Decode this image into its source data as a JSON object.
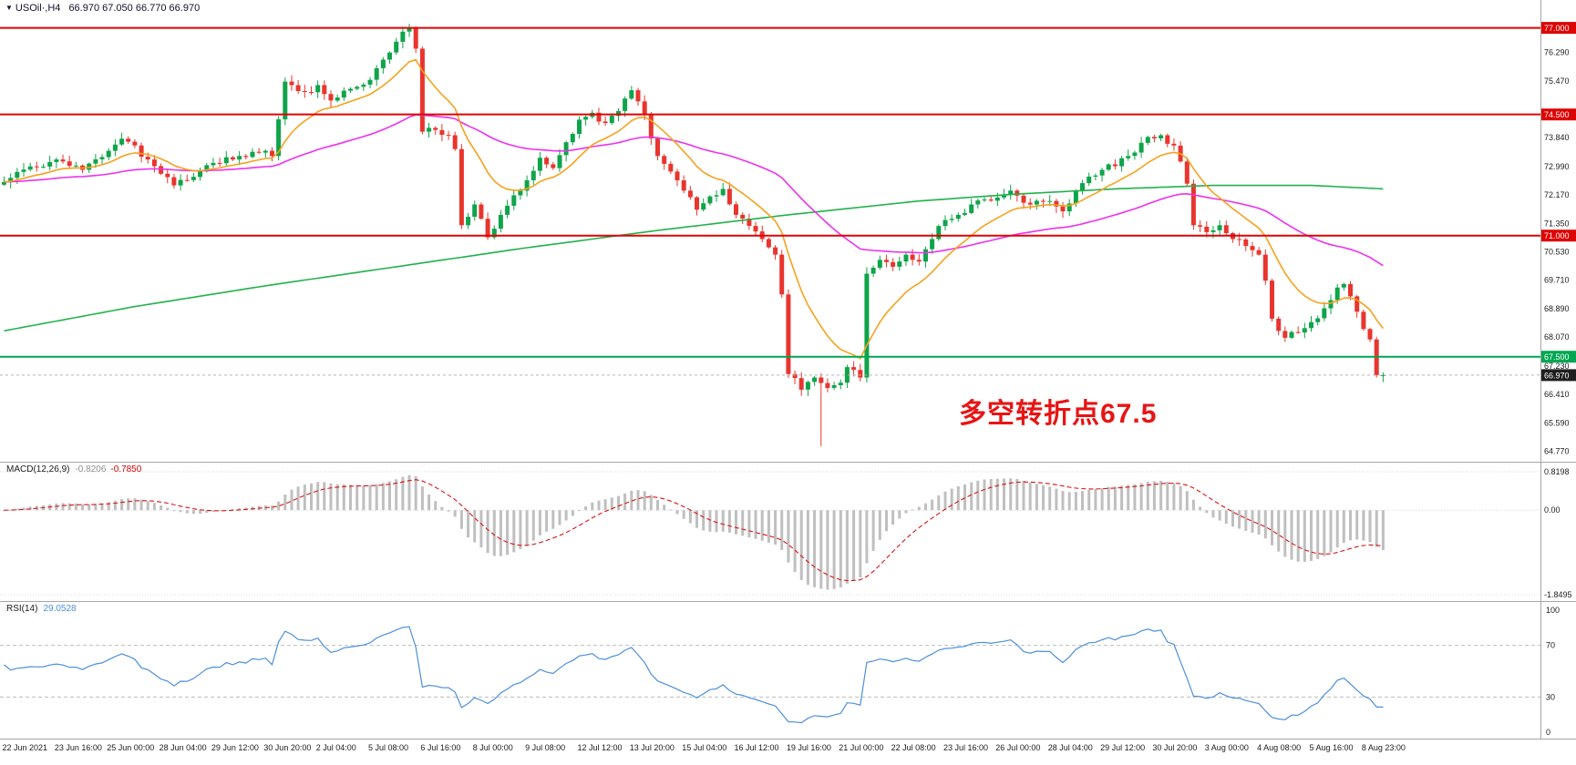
{
  "window": {
    "dropdown_icon": "▼",
    "symbol": "USOil·,H4",
    "ohlc_line": "66.970 67.050 66.770 66.970"
  },
  "colors": {
    "bull": "#0fa44a",
    "bear": "#e8352e",
    "macd_hist": "#bfbfbf",
    "macd_signal": "#dc1414",
    "rsi": "#4c8fdc",
    "badge_current_bg": "#1f1f1f",
    "separator": "#a6a6a6",
    "annotation": "#e81414"
  },
  "chart_data": {
    "type": "candlestick",
    "symbol": "USOil",
    "timeframe": "H4",
    "title": "USOil·,H4",
    "current_bar": {
      "open": 66.97,
      "high": 67.05,
      "low": 66.77,
      "close": 66.97
    },
    "current_price": {
      "label": "66.970",
      "value": 66.97
    },
    "candles": {
      "count": 212,
      "close_waypoints": [
        [
          0,
          72.55
        ],
        [
          4,
          73.0
        ],
        [
          8,
          73.2
        ],
        [
          12,
          72.9
        ],
        [
          16,
          73.45
        ],
        [
          18,
          73.8
        ],
        [
          22,
          73.2
        ],
        [
          26,
          72.45
        ],
        [
          28,
          72.6
        ],
        [
          32,
          73.1
        ],
        [
          36,
          73.3
        ],
        [
          40,
          73.45
        ],
        [
          41,
          73.3
        ],
        [
          43,
          75.45
        ],
        [
          46,
          75.15
        ],
        [
          48,
          75.35
        ],
        [
          50,
          74.9
        ],
        [
          54,
          75.3
        ],
        [
          56,
          75.5
        ],
        [
          60,
          76.6
        ],
        [
          62,
          77.0
        ],
        [
          63,
          76.4
        ],
        [
          64,
          74.0
        ],
        [
          66,
          74.05
        ],
        [
          68,
          73.9
        ],
        [
          69,
          73.5
        ],
        [
          70,
          71.3
        ],
        [
          72,
          71.9
        ],
        [
          74,
          70.95
        ],
        [
          76,
          71.6
        ],
        [
          80,
          72.6
        ],
        [
          82,
          73.25
        ],
        [
          84,
          72.95
        ],
        [
          88,
          74.35
        ],
        [
          90,
          74.55
        ],
        [
          92,
          74.25
        ],
        [
          94,
          74.6
        ],
        [
          96,
          75.2
        ],
        [
          98,
          74.5
        ],
        [
          100,
          73.3
        ],
        [
          102,
          72.85
        ],
        [
          104,
          72.3
        ],
        [
          106,
          71.75
        ],
        [
          110,
          72.35
        ],
        [
          112,
          71.6
        ],
        [
          116,
          70.9
        ],
        [
          118,
          70.45
        ],
        [
          119,
          69.3
        ],
        [
          120,
          67.0
        ],
        [
          122,
          66.55
        ],
        [
          124,
          66.9
        ],
        [
          126,
          66.6
        ],
        [
          128,
          66.75
        ],
        [
          129,
          67.2
        ],
        [
          131,
          66.9
        ],
        [
          132,
          69.9
        ],
        [
          134,
          70.3
        ],
        [
          136,
          70.1
        ],
        [
          138,
          70.45
        ],
        [
          140,
          70.25
        ],
        [
          142,
          70.9
        ],
        [
          144,
          71.45
        ],
        [
          146,
          71.6
        ],
        [
          148,
          71.9
        ],
        [
          152,
          72.1
        ],
        [
          154,
          72.3
        ],
        [
          156,
          71.95
        ],
        [
          160,
          72.0
        ],
        [
          162,
          71.7
        ],
        [
          164,
          72.3
        ],
        [
          168,
          72.9
        ],
        [
          172,
          73.3
        ],
        [
          175,
          73.85
        ],
        [
          177,
          73.9
        ],
        [
          179,
          73.6
        ],
        [
          181,
          72.5
        ],
        [
          182,
          71.3
        ],
        [
          184,
          71.1
        ],
        [
          186,
          71.3
        ],
        [
          188,
          70.9
        ],
        [
          190,
          70.7
        ],
        [
          192,
          70.45
        ],
        [
          193,
          69.7
        ],
        [
          194,
          68.6
        ],
        [
          196,
          68.05
        ],
        [
          198,
          68.2
        ],
        [
          200,
          68.5
        ],
        [
          202,
          68.9
        ],
        [
          204,
          69.5
        ],
        [
          205,
          69.6
        ],
        [
          207,
          68.8
        ],
        [
          208,
          68.3
        ],
        [
          209,
          68.0
        ],
        [
          210,
          66.97
        ],
        [
          211,
          66.97
        ]
      ],
      "peak": [
        62,
        77.12
      ],
      "long_wick": [
        125,
        64.92
      ]
    },
    "moving_averages": [
      {
        "name": "fast-ma",
        "type": "ema",
        "period": 12,
        "color": "#f6a21d"
      },
      {
        "name": "mid-ma",
        "type": "ema",
        "period": 55,
        "color": "#ee30ee"
      },
      {
        "name": "slow-ma",
        "type": "waypoints",
        "color": "#22b14c",
        "waypoints": [
          [
            0,
            68.25
          ],
          [
            20,
            68.95
          ],
          [
            40,
            69.55
          ],
          [
            60,
            70.1
          ],
          [
            80,
            70.65
          ],
          [
            100,
            71.15
          ],
          [
            120,
            71.6
          ],
          [
            140,
            72.0
          ],
          [
            155,
            72.2
          ],
          [
            170,
            72.35
          ],
          [
            185,
            72.45
          ],
          [
            200,
            72.45
          ],
          [
            211,
            72.35
          ]
        ]
      }
    ],
    "horizontal_lines": [
      {
        "label": "77.000",
        "value": 77.0,
        "color": "#dd0404"
      },
      {
        "label": "74.500",
        "value": 74.5,
        "color": "#dd0404"
      },
      {
        "label": "71.000",
        "value": 71.0,
        "color": "#dd0404"
      },
      {
        "label": "67.500",
        "value": 67.5,
        "color": "#00a651"
      }
    ],
    "price_axis_ticks": [
      {
        "label": "76.290",
        "value": 76.29
      },
      {
        "label": "75.470",
        "value": 75.47
      },
      {
        "label": "73.840",
        "value": 73.84
      },
      {
        "label": "72.990",
        "value": 72.99
      },
      {
        "label": "72.170",
        "value": 72.17
      },
      {
        "label": "71.350",
        "value": 71.35
      },
      {
        "label": "70.530",
        "value": 70.53
      },
      {
        "label": "69.710",
        "value": 69.71
      },
      {
        "label": "68.890",
        "value": 68.89
      },
      {
        "label": "68.070",
        "value": 68.07
      },
      {
        "label": "67.230",
        "value": 67.23
      },
      {
        "label": "66.410",
        "value": 66.41
      },
      {
        "label": "65.590",
        "value": 65.59
      },
      {
        "label": "64.770",
        "value": 64.77
      }
    ],
    "time_axis_labels": [
      "22 Jun 2021",
      "23 Jun 16:00",
      "25 Jun 00:00",
      "28 Jun 04:00",
      "29 Jun 12:00",
      "30 Jun 20:00",
      "2 Jul 04:00",
      "5 Jul 08:00",
      "6 Jul 16:00",
      "8 Jul 00:00",
      "9 Jul 08:00",
      "12 Jul 12:00",
      "13 Jul 20:00",
      "15 Jul 04:00",
      "16 Jul 12:00",
      "19 Jul 16:00",
      "21 Jul 00:00",
      "22 Jul 08:00",
      "23 Jul 16:00",
      "26 Jul 00:00",
      "28 Jul 04:00",
      "29 Jul 12:00",
      "30 Jul 20:00",
      "3 Aug 00:00",
      "4 Aug 08:00",
      "5 Aug 16:00",
      "8 Aug 23:00"
    ],
    "macd": {
      "label": "MACD(12,26,9)",
      "params": {
        "fast": 12,
        "slow": 26,
        "signal": 9
      },
      "value_main": "-0.8206",
      "value_signal": "-0.7850",
      "axis": [
        {
          "label": "0.8198",
          "value": 0.8198
        },
        {
          "label": "0.00",
          "value": 0
        },
        {
          "label": "-1.8495",
          "value": -1.8495
        }
      ]
    },
    "rsi": {
      "label": "RSI(14)",
      "period": 14,
      "value_str": "29.0528",
      "levels": [
        70,
        30
      ],
      "axis": [
        {
          "label": "100",
          "value": 100
        },
        {
          "label": "70",
          "value": 70
        },
        {
          "label": "30",
          "value": 30
        },
        {
          "label": "0",
          "value": 0
        }
      ]
    },
    "annotation": {
      "text": "多空转折点67.5"
    }
  }
}
